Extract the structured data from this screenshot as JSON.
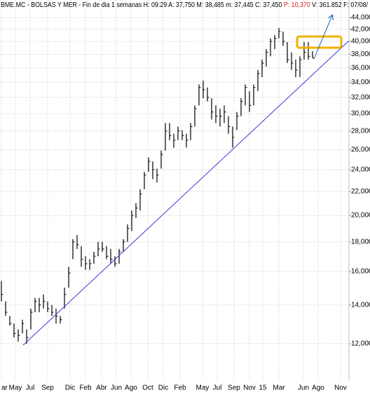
{
  "chart_data": {
    "type": "ohlc",
    "title": [
      {
        "text": "BME.MC - BOLSAS Y MER - Fin de dia 1 semanas H: 09:29 A: 37,750 M: 38,485 m: 37,445 C: 37,450 ",
        "color": "#000000"
      },
      {
        "text": "P: 10,370",
        "color": "#e02020"
      },
      {
        "text": " V: 361.852 F: 07/08/",
        "color": "#000000"
      }
    ],
    "yscale": "log",
    "grid": true,
    "color": "#000000",
    "ylim": [
      10430,
      46140
    ],
    "yticks": [
      {
        "value": 12000,
        "label": "12,000"
      },
      {
        "value": 14000,
        "label": "14,000"
      },
      {
        "value": 16000,
        "label": "16,000"
      },
      {
        "value": 18000,
        "label": "18,000"
      },
      {
        "value": 20000,
        "label": "20,000"
      },
      {
        "value": 22000,
        "label": "22,000"
      },
      {
        "value": 24000,
        "label": "24,000"
      },
      {
        "value": 26000,
        "label": "26,000"
      },
      {
        "value": 28000,
        "label": "28,000"
      },
      {
        "value": 30000,
        "label": "30,000"
      },
      {
        "value": 32000,
        "label": "32,000"
      },
      {
        "value": 34000,
        "label": "34,000"
      },
      {
        "value": 36000,
        "label": "36,000"
      },
      {
        "value": 38000,
        "label": "38,000"
      },
      {
        "value": 40000,
        "label": "40,000"
      },
      {
        "value": 42000,
        "label": "42,000"
      },
      {
        "value": 44000,
        "label": "44,000"
      }
    ],
    "xlim": [
      -0.33,
      82.67
    ],
    "xticks": [
      {
        "value": 0,
        "label": "ar"
      },
      {
        "value": 3.33,
        "label": "May"
      },
      {
        "value": 6.83,
        "label": "Jul"
      },
      {
        "value": 11,
        "label": "Sep"
      },
      {
        "value": 16.33,
        "label": "Dic"
      },
      {
        "value": 20,
        "label": "Feb"
      },
      {
        "value": 23.83,
        "label": "Abr"
      },
      {
        "value": 27.33,
        "label": "Jun"
      },
      {
        "value": 30.83,
        "label": "Ago"
      },
      {
        "value": 34.83,
        "label": "Oct"
      },
      {
        "value": 38.5,
        "label": "Dic"
      },
      {
        "value": 42.5,
        "label": "Feb"
      },
      {
        "value": 47.83,
        "label": "May"
      },
      {
        "value": 51.33,
        "label": "Jul"
      },
      {
        "value": 55.33,
        "label": "Sep"
      },
      {
        "value": 59,
        "label": "Nov"
      },
      {
        "value": 62.17,
        "label": "15"
      },
      {
        "value": 66,
        "label": "Mar"
      },
      {
        "value": 71.83,
        "label": "Jun"
      },
      {
        "value": 75.33,
        "label": "Ago"
      },
      {
        "value": 80.67,
        "label": "Nov"
      }
    ],
    "x": [
      0,
      1,
      2,
      3,
      4,
      5,
      6,
      7,
      8,
      9,
      10,
      11,
      12,
      13,
      14,
      15,
      16,
      17,
      18,
      19,
      20,
      21,
      22,
      23,
      24,
      25,
      26,
      27,
      28,
      29,
      30,
      31,
      32,
      33,
      34,
      35,
      36,
      37,
      38,
      39,
      40,
      41,
      42,
      43,
      44,
      45,
      46,
      47,
      48,
      49,
      50,
      51,
      52,
      53,
      54,
      55,
      56,
      57,
      58,
      59,
      60,
      61,
      62,
      63,
      64,
      65,
      66,
      67,
      68,
      69,
      70,
      71,
      72,
      73,
      74
    ],
    "high": [
      15400,
      14200,
      13400,
      13000,
      12700,
      13200,
      12700,
      13800,
      14400,
      14400,
      14600,
      14200,
      14000,
      13800,
      13400,
      15000,
      16300,
      18200,
      18500,
      17700,
      17000,
      16800,
      17300,
      18000,
      18000,
      17700,
      17500,
      17000,
      17500,
      18200,
      19300,
      20400,
      21000,
      22200,
      23800,
      25200,
      24800,
      24100,
      25900,
      28900,
      28900,
      27700,
      28500,
      28100,
      27700,
      28900,
      31000,
      33700,
      34200,
      33300,
      31900,
      31000,
      30600,
      31000,
      29700,
      28500,
      30200,
      31900,
      33700,
      32800,
      33700,
      35700,
      37200,
      38800,
      40500,
      41000,
      42200,
      41600,
      39900,
      38300,
      37200,
      37700,
      39900,
      39900,
      38485
    ],
    "low": [
      14200,
      13400,
      12900,
      12300,
      12100,
      12500,
      12000,
      12700,
      13600,
      13600,
      13800,
      13600,
      13400,
      13000,
      13000,
      13800,
      15000,
      16800,
      17500,
      16300,
      16100,
      16100,
      16500,
      17000,
      17300,
      16800,
      16500,
      16300,
      16500,
      17300,
      18000,
      18800,
      19800,
      20400,
      22200,
      23800,
      23100,
      22800,
      24100,
      25900,
      27000,
      26200,
      27000,
      27000,
      26200,
      27000,
      28500,
      31000,
      31900,
      31500,
      29300,
      28900,
      28500,
      28900,
      27700,
      26200,
      28100,
      29700,
      31000,
      30200,
      31000,
      32800,
      34700,
      36200,
      37700,
      38800,
      40500,
      39300,
      36700,
      35700,
      34700,
      34700,
      37200,
      37200,
      37445
    ],
    "close": [
      14600,
      13600,
      13000,
      12500,
      12400,
      13000,
      12300,
      13600,
      14200,
      14000,
      14200,
      13800,
      13600,
      13400,
      13200,
      14600,
      15900,
      18000,
      17800,
      16800,
      16500,
      16500,
      17000,
      17500,
      17500,
      17000,
      16800,
      16500,
      17300,
      18000,
      19000,
      20000,
      20600,
      21800,
      23500,
      24800,
      24000,
      23500,
      25500,
      28000,
      27500,
      27000,
      28000,
      27500,
      27000,
      28500,
      30600,
      33300,
      33000,
      32000,
      30200,
      29700,
      29700,
      30200,
      28500,
      27300,
      29700,
      31500,
      33300,
      31000,
      33300,
      35200,
      36700,
      38300,
      40000,
      40500,
      41600,
      40000,
      37200,
      36700,
      35700,
      37200,
      38300,
      37700,
      37450
    ]
  }
}
